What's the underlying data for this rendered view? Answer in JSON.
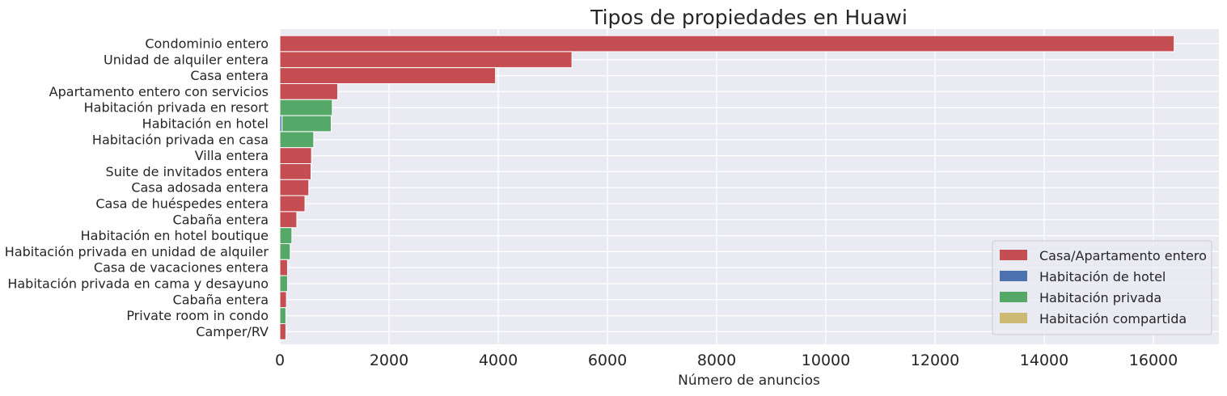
{
  "chart_data": {
    "type": "bar",
    "orientation": "horizontal",
    "stacked": true,
    "title": "Tipos de propiedades en Huawi",
    "xlabel": "Número de anuncios",
    "ylabel": "",
    "xlim": [
      0,
      17200
    ],
    "xticks": [
      0,
      2000,
      4000,
      6000,
      8000,
      10000,
      12000,
      14000,
      16000
    ],
    "grid": true,
    "legend_position": "lower-right",
    "categories": [
      "Condominio entero",
      "Unidad de alquiler entera",
      "Casa entera",
      "Apartamento entero con servicios",
      "Habitación privada en resort",
      "Habitación en hotel",
      "Habitación privada en casa",
      "Villa entera",
      "Suite de invitados entera",
      "Casa adosada entera",
      "Casa de huéspedes entera",
      "Cabaña entera",
      "Habitación en hotel boutique",
      "Habitación privada en unidad de alquiler",
      "Casa de vacaciones entera",
      "Habitación privada en cama y desayuno",
      "Cabaña entera",
      "Private room in condo",
      "Camper/RV"
    ],
    "series": [
      {
        "name": "Casa/Apartamento entero",
        "color": "#c44e52",
        "values": [
          16380,
          5350,
          3950,
          1060,
          0,
          0,
          0,
          580,
          570,
          530,
          460,
          310,
          0,
          0,
          140,
          0,
          120,
          0,
          110
        ]
      },
      {
        "name": "Habitación de hotel",
        "color": "#4c72b0",
        "values": [
          0,
          0,
          0,
          0,
          0,
          40,
          0,
          0,
          0,
          0,
          0,
          0,
          0,
          0,
          0,
          0,
          0,
          0,
          0
        ]
      },
      {
        "name": "Habitación privada",
        "color": "#55a868",
        "values": [
          0,
          0,
          0,
          0,
          960,
          900,
          620,
          0,
          0,
          0,
          0,
          0,
          220,
          190,
          0,
          140,
          0,
          110,
          0
        ]
      },
      {
        "name": "Habitación compartida",
        "color": "#ccb974",
        "values": [
          0,
          0,
          0,
          0,
          0,
          0,
          0,
          0,
          0,
          0,
          0,
          0,
          0,
          0,
          0,
          0,
          0,
          0,
          0
        ]
      }
    ]
  }
}
